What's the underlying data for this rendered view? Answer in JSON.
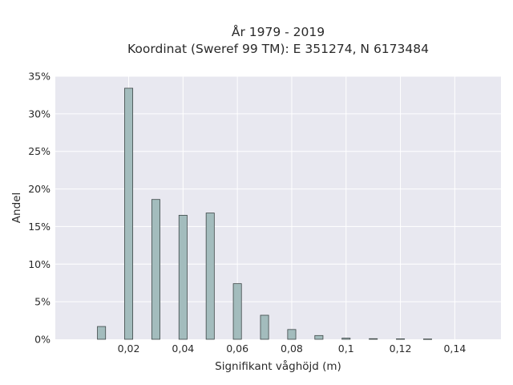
{
  "chart_data": {
    "type": "bar",
    "title": [
      "År 1979 - 2019",
      "Koordinat (Sweref 99 TM): E 351274, N 6173484"
    ],
    "xlabel": "Signifikant våghöjd (m)",
    "ylabel": "Andel",
    "x": [
      0.01,
      0.02,
      0.03,
      0.04,
      0.05,
      0.06,
      0.07,
      0.08,
      0.09,
      0.1,
      0.11,
      0.12,
      0.13
    ],
    "values": [
      0.017,
      0.334,
      0.186,
      0.165,
      0.168,
      0.074,
      0.032,
      0.013,
      0.005,
      0.0015,
      0.0008,
      0.0006,
      0.0004
    ],
    "xlim": [
      -0.007,
      0.157
    ],
    "ylim": [
      0,
      0.35
    ],
    "xticks": [
      0.02,
      0.04,
      0.06,
      0.08,
      0.1,
      0.12,
      0.14
    ],
    "xtick_labels": [
      "0,02",
      "0,04",
      "0,06",
      "0,08",
      "0,1",
      "0,12",
      "0,14"
    ],
    "yticks": [
      0,
      0.05,
      0.1,
      0.15,
      0.2,
      0.25,
      0.3,
      0.35
    ],
    "ytick_labels": [
      "0%",
      "5%",
      "10%",
      "15%",
      "20%",
      "25%",
      "30%",
      "35%"
    ],
    "bar_width": 0.003,
    "grid": true,
    "legend": "none",
    "colors": {
      "plot_background": "#e8e8f0",
      "grid": "#ffffff",
      "bar_fill": "#a3bcbd",
      "bar_edge": "#3d4747",
      "text": "#2a2a2a"
    }
  }
}
